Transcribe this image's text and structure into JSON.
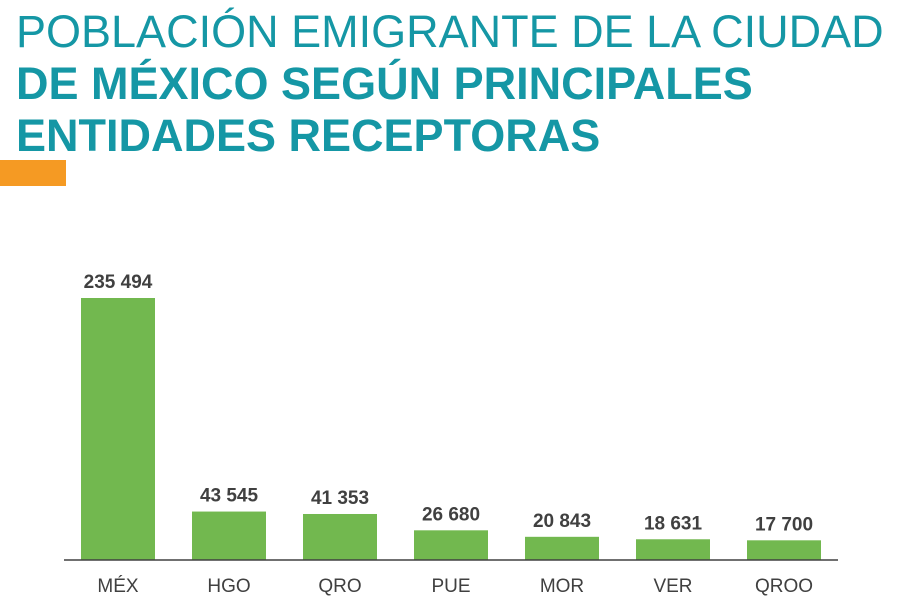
{
  "title": {
    "line1": "POBLACIÓN EMIGRANTE DE LA CIUDAD",
    "line2": "DE MÉXICO SEGÚN PRINCIPALES",
    "line3": "ENTIDADES RECEPTORAS"
  },
  "colors": {
    "title": "#1597a5",
    "accent": "#f59a23",
    "bar": "#72b84f",
    "text": "#404040",
    "axis": "#404040"
  },
  "chart_data": {
    "type": "bar",
    "categories": [
      "MÉX",
      "HGO",
      "QRO",
      "PUE",
      "MOR",
      "VER",
      "QROO"
    ],
    "values": [
      235494,
      43545,
      41353,
      26680,
      20843,
      18631,
      17700
    ],
    "value_labels": [
      "235 494",
      "43 545",
      "41 353",
      "26 680",
      "20 843",
      "18 631",
      "17 700"
    ],
    "title": "POBLACIÓN EMIGRANTE DE LA CIUDAD DE MÉXICO SEGÚN PRINCIPALES ENTIDADES RECEPTORAS",
    "xlabel": "",
    "ylabel": "",
    "ylim": [
      0,
      235494
    ],
    "grid": false,
    "legend": "none"
  }
}
